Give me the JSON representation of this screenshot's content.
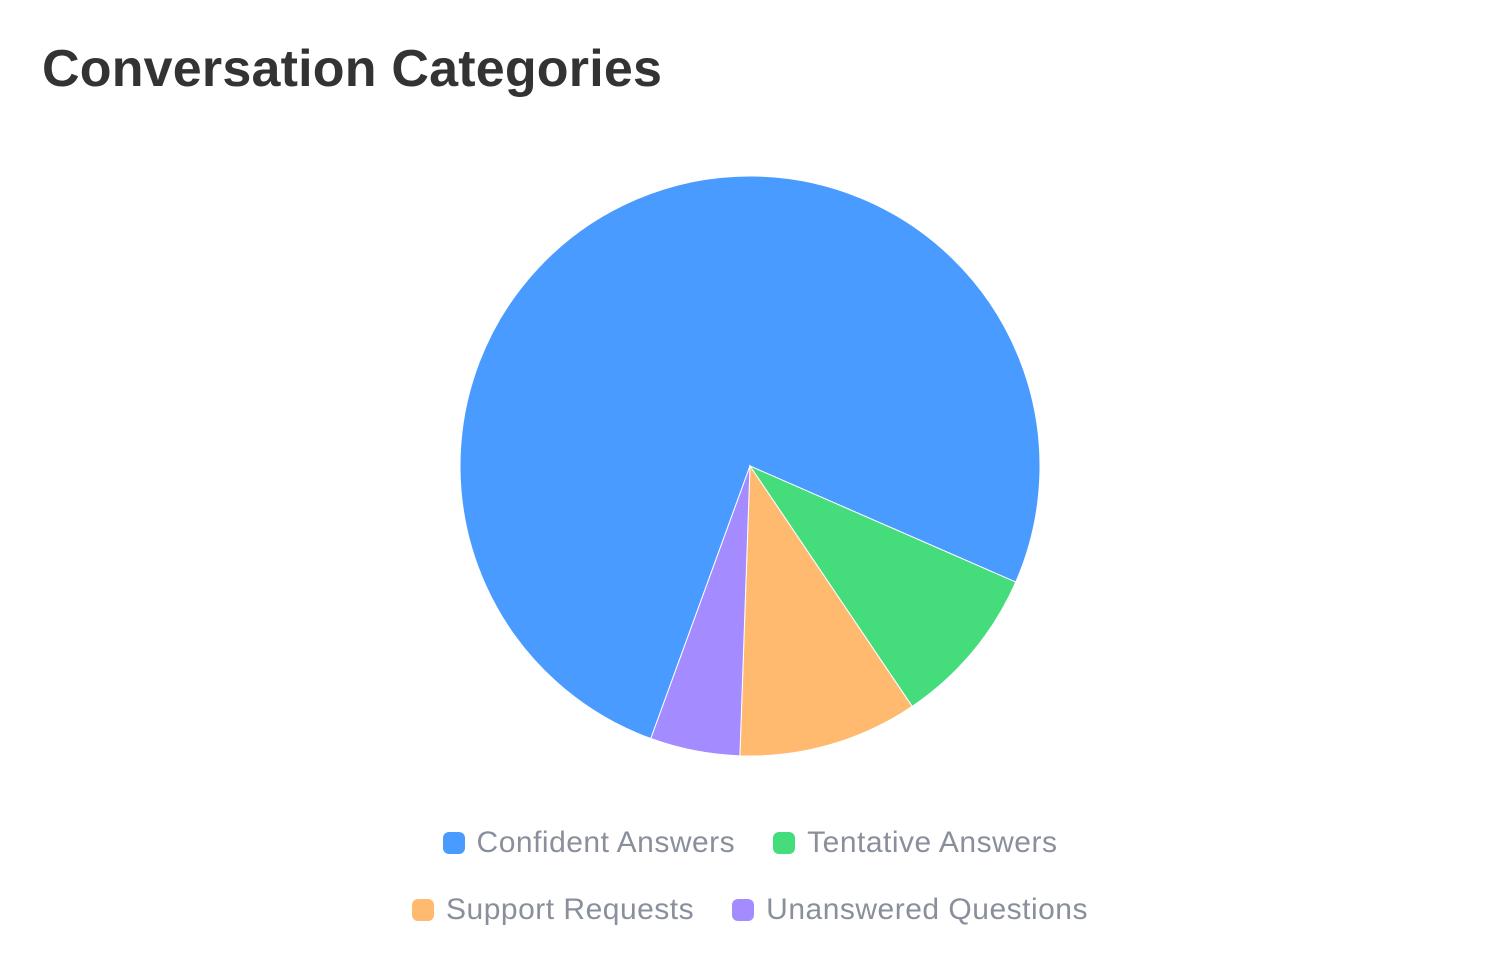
{
  "title": "Conversation Categories",
  "chart_data": {
    "type": "pie",
    "title": "Conversation Categories",
    "categories": [
      "Confident Answers",
      "Tentative Answers",
      "Support Requests",
      "Unanswered Questions"
    ],
    "values": [
      76,
      9,
      10,
      5
    ],
    "colors": [
      "#4a9bff",
      "#45dc7c",
      "#ffba70",
      "#a48bff"
    ],
    "start_angle_deg": 200,
    "direction": "clockwise",
    "legend": "bottom"
  }
}
